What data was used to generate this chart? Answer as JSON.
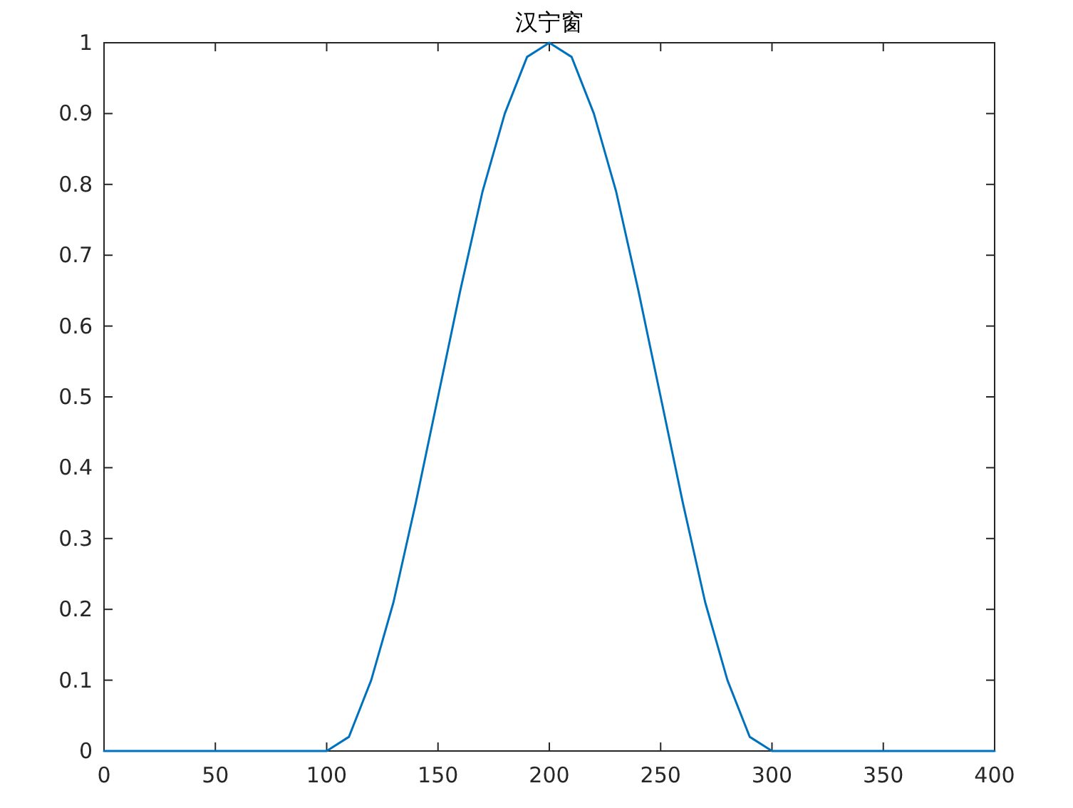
{
  "chart_data": {
    "type": "line",
    "title": "汉宁窗",
    "x": [
      0,
      50,
      100,
      110,
      120,
      130,
      140,
      150,
      160,
      170,
      180,
      190,
      200,
      210,
      220,
      230,
      240,
      250,
      260,
      270,
      280,
      290,
      300,
      350,
      400
    ],
    "series": [
      {
        "color": "#0072bd",
        "values": [
          0,
          0,
          0,
          0.02,
          0.1,
          0.21,
          0.35,
          0.5,
          0.65,
          0.79,
          0.9,
          0.98,
          1,
          0.98,
          0.9,
          0.79,
          0.65,
          0.5,
          0.35,
          0.21,
          0.1,
          0.02,
          0,
          0,
          0
        ]
      }
    ],
    "xlim": [
      0,
      400
    ],
    "xticks": [
      0,
      50,
      100,
      150,
      200,
      250,
      300,
      350,
      400
    ],
    "ylim": [
      0,
      1
    ],
    "yticks": [
      0,
      0.1,
      0.2,
      0.3,
      0.4,
      0.5,
      0.6,
      0.7,
      0.8,
      0.9,
      1
    ],
    "marker": "none",
    "line_style": "solid"
  }
}
